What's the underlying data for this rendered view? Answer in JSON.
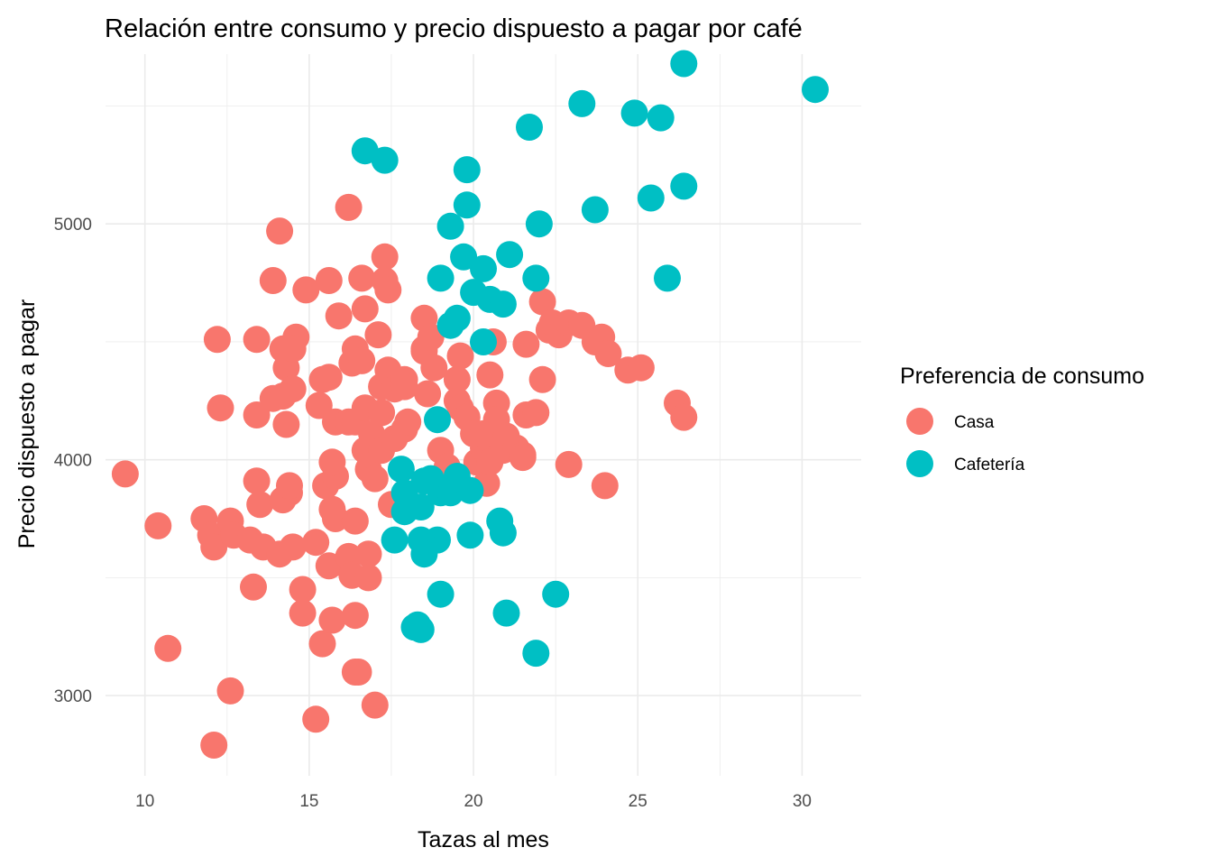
{
  "chart_data": {
    "type": "scatter",
    "title": "Relación entre consumo y precio dispuesto a pagar por café",
    "xlabel": "Tazas al mes",
    "ylabel": "Precio dispuesto a pagar",
    "xlim": [
      8.8,
      31.8
    ],
    "ylim": [
      2660,
      5720
    ],
    "xticks": [
      10,
      15,
      20,
      25,
      30
    ],
    "xtick_labels": [
      "10",
      "15",
      "20",
      "25",
      "30"
    ],
    "yticks": [
      3000,
      4000,
      5000
    ],
    "ytick_labels": [
      "3000",
      "4000",
      "5000"
    ],
    "grid": true,
    "legend": {
      "title": "Preferencia de consumo",
      "position": "right"
    },
    "series": [
      {
        "name": "Casa",
        "color": "#F8766D",
        "points": [
          [
            9.4,
            3940
          ],
          [
            10.4,
            3720
          ],
          [
            10.7,
            3200
          ],
          [
            12.2,
            4510
          ],
          [
            12.3,
            4220
          ],
          [
            11.8,
            3750
          ],
          [
            12.0,
            3680
          ],
          [
            12.1,
            3630
          ],
          [
            12.6,
            3740
          ],
          [
            12.7,
            3680
          ],
          [
            12.6,
            3020
          ],
          [
            12.1,
            2790
          ],
          [
            13.4,
            4510
          ],
          [
            13.4,
            4190
          ],
          [
            13.4,
            3910
          ],
          [
            13.5,
            3810
          ],
          [
            13.2,
            3660
          ],
          [
            13.3,
            3460
          ],
          [
            13.6,
            3630
          ],
          [
            13.9,
            4760
          ],
          [
            14.1,
            4970
          ],
          [
            13.9,
            4260
          ],
          [
            14.2,
            4270
          ],
          [
            14.2,
            4470
          ],
          [
            14.3,
            4390
          ],
          [
            14.3,
            4150
          ],
          [
            14.4,
            3860
          ],
          [
            14.2,
            3830
          ],
          [
            14.1,
            3600
          ],
          [
            14.6,
            4520
          ],
          [
            14.5,
            4470
          ],
          [
            14.5,
            4300
          ],
          [
            14.4,
            3890
          ],
          [
            14.5,
            3630
          ],
          [
            14.9,
            4720
          ],
          [
            14.8,
            3450
          ],
          [
            14.8,
            3350
          ],
          [
            15.2,
            2900
          ],
          [
            15.3,
            4230
          ],
          [
            15.4,
            4340
          ],
          [
            15.6,
            4760
          ],
          [
            15.6,
            4350
          ],
          [
            15.5,
            3890
          ],
          [
            15.4,
            3220
          ],
          [
            15.6,
            3550
          ],
          [
            15.8,
            3930
          ],
          [
            15.8,
            4160
          ],
          [
            15.7,
            3990
          ],
          [
            15.9,
            4610
          ],
          [
            15.7,
            3320
          ],
          [
            15.8,
            3750
          ],
          [
            16.2,
            5070
          ],
          [
            16.2,
            3590
          ],
          [
            16.2,
            4160
          ],
          [
            16.3,
            4410
          ],
          [
            16.4,
            4470
          ],
          [
            16.4,
            3100
          ],
          [
            16.4,
            3740
          ],
          [
            16.4,
            3340
          ],
          [
            16.3,
            3510
          ],
          [
            16.5,
            3100
          ],
          [
            16.4,
            4160
          ],
          [
            16.6,
            4770
          ],
          [
            16.6,
            4420
          ],
          [
            16.7,
            4640
          ],
          [
            16.7,
            4220
          ],
          [
            16.7,
            4040
          ],
          [
            16.8,
            3600
          ],
          [
            16.8,
            3500
          ],
          [
            16.8,
            3960
          ],
          [
            16.9,
            4110
          ],
          [
            17.0,
            3920
          ],
          [
            17.0,
            2960
          ],
          [
            17.1,
            4530
          ],
          [
            17.2,
            4310
          ],
          [
            17.2,
            4200
          ],
          [
            17.2,
            4040
          ],
          [
            17.3,
            4860
          ],
          [
            17.3,
            4760
          ],
          [
            17.4,
            4720
          ],
          [
            17.5,
            3810
          ],
          [
            17.6,
            4090
          ],
          [
            17.4,
            4380
          ],
          [
            17.6,
            4300
          ],
          [
            17.9,
            4130
          ],
          [
            18.0,
            4160
          ],
          [
            17.9,
            4340
          ],
          [
            17.9,
            4310
          ],
          [
            18.5,
            4470
          ],
          [
            18.5,
            4600
          ],
          [
            18.6,
            4280
          ],
          [
            18.5,
            4460
          ],
          [
            18.7,
            4520
          ],
          [
            18.8,
            4390
          ],
          [
            19.0,
            4040
          ],
          [
            19.2,
            3970
          ],
          [
            19.5,
            4340
          ],
          [
            19.5,
            4250
          ],
          [
            19.6,
            4220
          ],
          [
            19.8,
            4180
          ],
          [
            20.0,
            4110
          ],
          [
            20.1,
            3990
          ],
          [
            20.3,
            4050
          ],
          [
            20.4,
            3900
          ],
          [
            20.3,
            4110
          ],
          [
            20.6,
            4500
          ],
          [
            20.7,
            4240
          ],
          [
            20.7,
            4170
          ],
          [
            20.9,
            4040
          ],
          [
            21.0,
            4100
          ],
          [
            21.3,
            4050
          ],
          [
            21.5,
            4020
          ],
          [
            21.6,
            4490
          ],
          [
            21.6,
            4190
          ],
          [
            21.9,
            4200
          ],
          [
            22.1,
            4670
          ],
          [
            22.1,
            4340
          ],
          [
            22.3,
            4550
          ],
          [
            22.4,
            4580
          ],
          [
            22.6,
            4530
          ],
          [
            22.9,
            4580
          ],
          [
            22.9,
            3980
          ],
          [
            23.3,
            4570
          ],
          [
            23.7,
            4500
          ],
          [
            23.9,
            4520
          ],
          [
            24.0,
            3890
          ],
          [
            24.1,
            4450
          ],
          [
            24.7,
            4380
          ],
          [
            25.1,
            4390
          ],
          [
            26.2,
            4240
          ],
          [
            26.4,
            4180
          ],
          [
            20.5,
            3990
          ],
          [
            21.5,
            4010
          ],
          [
            20.5,
            4360
          ],
          [
            19.6,
            4440
          ],
          [
            15.2,
            3650
          ],
          [
            15.7,
            3790
          ]
        ]
      },
      {
        "name": "Cafetería",
        "color": "#00BFC4",
        "points": [
          [
            26.4,
            5680
          ],
          [
            30.4,
            5570
          ],
          [
            23.3,
            5510
          ],
          [
            24.9,
            5470
          ],
          [
            25.7,
            5450
          ],
          [
            21.7,
            5410
          ],
          [
            16.7,
            5310
          ],
          [
            17.3,
            5270
          ],
          [
            19.8,
            5230
          ],
          [
            19.8,
            5080
          ],
          [
            26.4,
            5160
          ],
          [
            25.4,
            5110
          ],
          [
            23.7,
            5060
          ],
          [
            22.0,
            5000
          ],
          [
            19.3,
            4990
          ],
          [
            19.7,
            4860
          ],
          [
            21.1,
            4870
          ],
          [
            20.3,
            4810
          ],
          [
            19.0,
            4770
          ],
          [
            21.9,
            4770
          ],
          [
            25.9,
            4770
          ],
          [
            20.0,
            4710
          ],
          [
            20.5,
            4680
          ],
          [
            20.9,
            4660
          ],
          [
            19.5,
            4600
          ],
          [
            19.3,
            4570
          ],
          [
            20.3,
            4500
          ],
          [
            17.8,
            3960
          ],
          [
            18.9,
            4170
          ],
          [
            18.7,
            3920
          ],
          [
            19.0,
            3860
          ],
          [
            19.3,
            3860
          ],
          [
            18.4,
            3800
          ],
          [
            17.9,
            3860
          ],
          [
            18.5,
            3910
          ],
          [
            19.9,
            3870
          ],
          [
            19.5,
            3930
          ],
          [
            17.9,
            3780
          ],
          [
            17.6,
            3660
          ],
          [
            18.9,
            3660
          ],
          [
            18.4,
            3660
          ],
          [
            18.5,
            3600
          ],
          [
            19.9,
            3680
          ],
          [
            20.8,
            3740
          ],
          [
            20.9,
            3690
          ],
          [
            22.5,
            3430
          ],
          [
            21.0,
            3350
          ],
          [
            21.9,
            3180
          ],
          [
            19.0,
            3430
          ],
          [
            18.3,
            3300
          ],
          [
            18.4,
            3280
          ],
          [
            18.2,
            3290
          ]
        ]
      }
    ]
  }
}
